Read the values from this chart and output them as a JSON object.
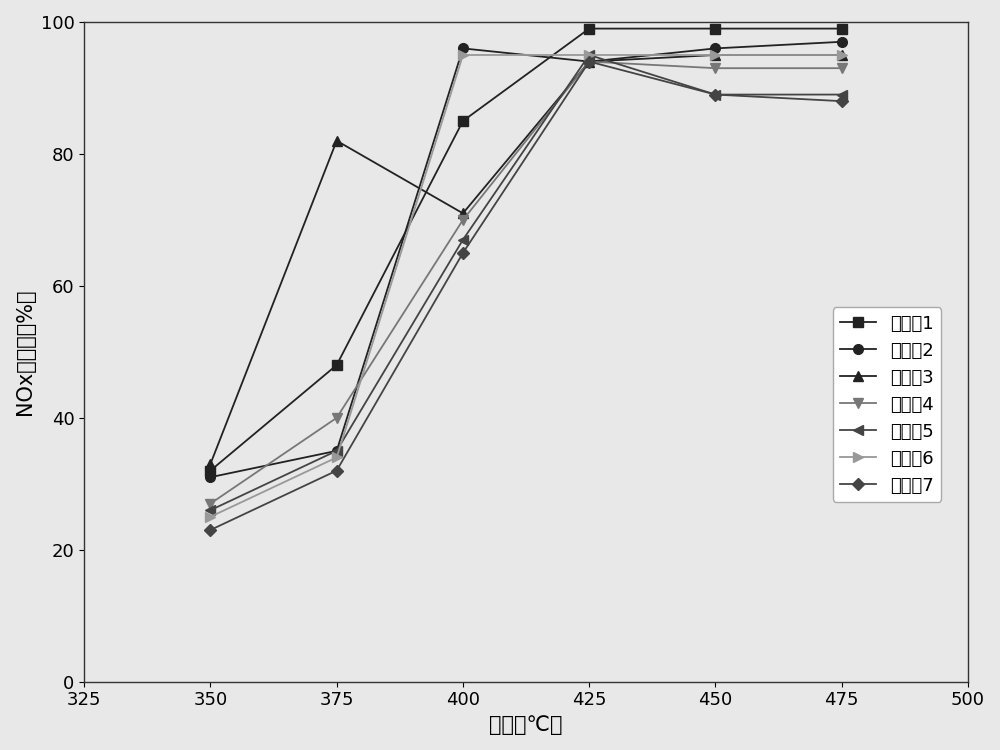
{
  "title": "",
  "xlabel": "温度（℃）",
  "ylabel": "NOx转化率（%）",
  "xlim": [
    325,
    500
  ],
  "ylim": [
    0,
    100
  ],
  "xticks": [
    325,
    350,
    375,
    400,
    425,
    450,
    475,
    500
  ],
  "yticks": [
    0,
    20,
    40,
    60,
    80,
    100
  ],
  "series": [
    {
      "label": "实施例1",
      "x": [
        350,
        375,
        400,
        425,
        450,
        475
      ],
      "y": [
        32,
        48,
        85,
        99,
        99,
        99
      ],
      "color": "#222222",
      "marker": "s",
      "markersize": 7,
      "linewidth": 1.3
    },
    {
      "label": "实施例2",
      "x": [
        350,
        375,
        400,
        425,
        450,
        475
      ],
      "y": [
        31,
        35,
        96,
        94,
        96,
        97
      ],
      "color": "#222222",
      "marker": "o",
      "markersize": 7,
      "linewidth": 1.3
    },
    {
      "label": "实施例3",
      "x": [
        350,
        375,
        400,
        425,
        450,
        475
      ],
      "y": [
        33,
        82,
        71,
        94,
        95,
        95
      ],
      "color": "#222222",
      "marker": "^",
      "markersize": 7,
      "linewidth": 1.3
    },
    {
      "label": "实施例4",
      "x": [
        350,
        375,
        400,
        425,
        450,
        475
      ],
      "y": [
        27,
        40,
        70,
        94,
        93,
        93
      ],
      "color": "#777777",
      "marker": "v",
      "markersize": 7,
      "linewidth": 1.3
    },
    {
      "label": "实施例5",
      "x": [
        350,
        375,
        400,
        425,
        450,
        475
      ],
      "y": [
        26,
        35,
        67,
        95,
        89,
        89
      ],
      "color": "#444444",
      "marker": "<",
      "markersize": 7,
      "linewidth": 1.3
    },
    {
      "label": "实施例6",
      "x": [
        350,
        375,
        400,
        425,
        450,
        475
      ],
      "y": [
        25,
        34,
        95,
        95,
        95,
        95
      ],
      "color": "#999999",
      "marker": ">",
      "markersize": 7,
      "linewidth": 1.3
    },
    {
      "label": "实施例7",
      "x": [
        350,
        375,
        400,
        425,
        450,
        475
      ],
      "y": [
        23,
        32,
        65,
        94,
        89,
        88
      ],
      "color": "#444444",
      "marker": "D",
      "markersize": 6,
      "linewidth": 1.3
    }
  ],
  "legend_fontsize": 13,
  "font_size": 15,
  "tick_font_size": 13,
  "background_color": "#e8e8e8"
}
